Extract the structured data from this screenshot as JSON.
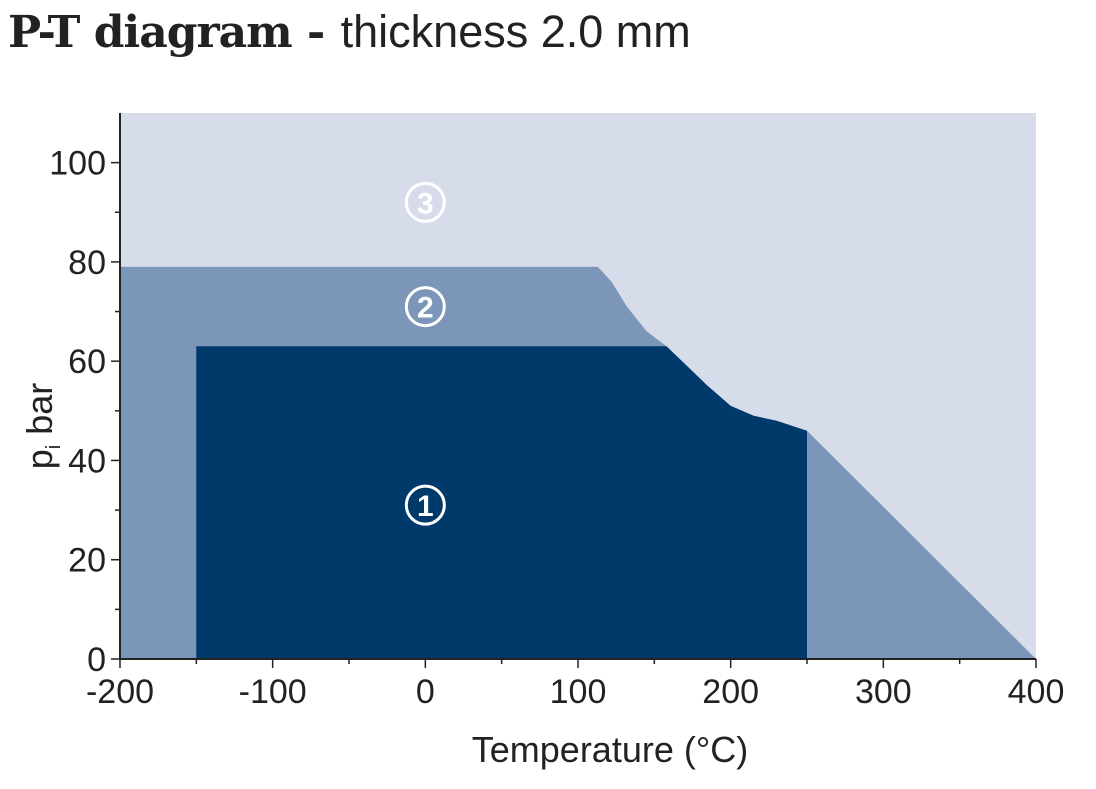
{
  "title": {
    "bold": "P-T diagram",
    "separator": " - ",
    "light": "thickness 2.0 mm"
  },
  "chart_data": {
    "type": "area",
    "title": "P-T diagram - thickness 2.0 mm",
    "xlabel": "Temperature (°C)",
    "ylabel_main": "p",
    "ylabel_sub": "i",
    "ylabel_unit": "bar",
    "xlim": [
      -200,
      400
    ],
    "ylim": [
      0,
      110
    ],
    "xticks": [
      -200,
      -100,
      0,
      100,
      200,
      300,
      400
    ],
    "xtick_labels": [
      "-200",
      "-100",
      "0",
      "100",
      "200",
      "300",
      "400"
    ],
    "yticks": [
      0,
      20,
      40,
      60,
      80,
      100
    ],
    "ytick_labels": [
      "0",
      "20",
      "40",
      "60",
      "80",
      "100"
    ],
    "grid": false,
    "regions": [
      {
        "label": "3",
        "color": "#d6dce9",
        "label_color": "#ffffff",
        "label_at": [
          0,
          92
        ],
        "polygon": [
          [
            -200,
            0
          ],
          [
            400,
            0
          ],
          [
            400,
            110
          ],
          [
            -200,
            110
          ]
        ]
      },
      {
        "label": "2",
        "color": "#7b96b8",
        "label_color": "#ffffff",
        "label_at": [
          0,
          71
        ],
        "polygon": [
          [
            -200,
            0
          ],
          [
            400,
            0
          ],
          [
            250,
            46
          ],
          [
            230,
            48
          ],
          [
            215,
            49
          ],
          [
            200,
            51
          ],
          [
            185,
            55
          ],
          [
            158,
            63
          ],
          [
            145,
            66
          ],
          [
            132,
            71
          ],
          [
            122,
            76
          ],
          [
            113,
            79
          ],
          [
            -200,
            79
          ]
        ]
      },
      {
        "label": "1",
        "color": "#003a6a",
        "label_color": "#ffffff",
        "label_at": [
          0,
          31
        ],
        "polygon": [
          [
            -150,
            0
          ],
          [
            250,
            0
          ],
          [
            250,
            46
          ],
          [
            230,
            48
          ],
          [
            215,
            49
          ],
          [
            200,
            51
          ],
          [
            185,
            55
          ],
          [
            158,
            63
          ],
          [
            -150,
            63
          ]
        ]
      }
    ]
  },
  "colors": {
    "axis": "#222222",
    "text": "#222222"
  }
}
